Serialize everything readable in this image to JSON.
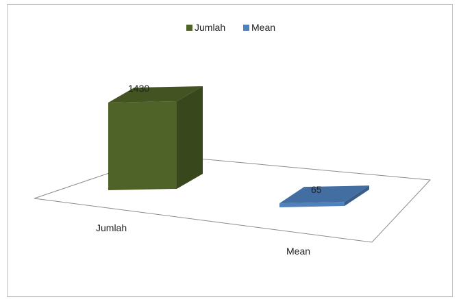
{
  "chart_data": {
    "type": "bar",
    "categories": [
      "Jumlah",
      "Mean"
    ],
    "series": [
      {
        "name": "Jumlah",
        "color": "#4f6228",
        "values": [
          1430,
          null
        ]
      },
      {
        "name": "Mean",
        "color": "#4f81bd",
        "values": [
          null,
          65
        ]
      }
    ],
    "data_labels": [
      "1430",
      "65"
    ],
    "legend": "top-center",
    "grid": false,
    "projection": "3d"
  }
}
